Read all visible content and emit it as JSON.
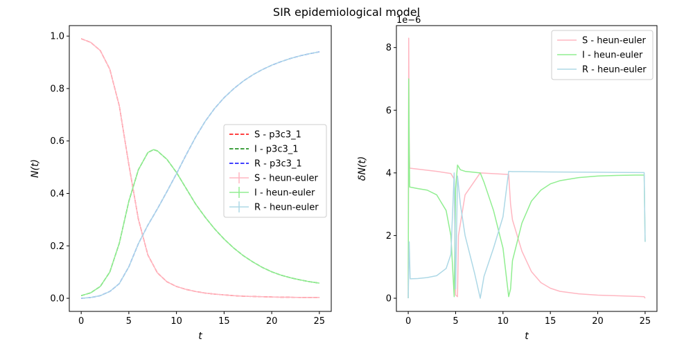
{
  "figure_title": "SIR epidemiological model",
  "chart_data": [
    {
      "type": "line",
      "xlabel": "t",
      "ylabel": "N(t)",
      "xlim": [
        -1.25,
        26.25
      ],
      "ylim": [
        -0.05,
        1.04
      ],
      "xticks": [
        0,
        5,
        10,
        15,
        20,
        25
      ],
      "xtick_labels": [
        "0",
        "5",
        "10",
        "15",
        "20",
        "25"
      ],
      "yticks": [
        0.0,
        0.2,
        0.4,
        0.6,
        0.8,
        1.0
      ],
      "ytick_labels": [
        "0.0",
        "0.2",
        "0.4",
        "0.6",
        "0.8",
        "1.0"
      ],
      "legend_position": "center-right",
      "series": [
        {
          "name": "S - p3c3_1",
          "color": "#ff0000",
          "style": "dashed",
          "x": [
            0,
            1,
            2,
            3,
            4,
            5,
            6,
            7,
            8,
            9,
            10,
            11,
            12,
            13,
            14,
            15,
            16,
            17,
            18,
            19,
            20,
            21,
            22,
            23,
            24,
            25
          ],
          "y": [
            0.99,
            0.976,
            0.945,
            0.874,
            0.734,
            0.51,
            0.302,
            0.165,
            0.097,
            0.063,
            0.045,
            0.034,
            0.026,
            0.02,
            0.016,
            0.013,
            0.01,
            0.008,
            0.007,
            0.006,
            0.005,
            0.004,
            0.004,
            0.003,
            0.003,
            0.003
          ]
        },
        {
          "name": "I - p3c3_1",
          "color": "#008000",
          "style": "dashed",
          "x": [
            0,
            1,
            2,
            3,
            4,
            5,
            6,
            7,
            7.6,
            8,
            9,
            10,
            11,
            12,
            13,
            14,
            15,
            16,
            17,
            18,
            19,
            20,
            21,
            22,
            23,
            24,
            25
          ],
          "y": [
            0.01,
            0.021,
            0.045,
            0.1,
            0.21,
            0.37,
            0.49,
            0.556,
            0.567,
            0.562,
            0.53,
            0.48,
            0.42,
            0.36,
            0.31,
            0.265,
            0.226,
            0.192,
            0.163,
            0.139,
            0.118,
            0.101,
            0.088,
            0.078,
            0.07,
            0.063,
            0.058
          ]
        },
        {
          "name": "R - p3c3_1",
          "color": "#0000ff",
          "style": "dashed",
          "x": [
            0,
            1,
            2,
            3,
            4,
            5,
            6,
            7,
            8,
            9,
            10,
            11,
            12,
            13,
            14,
            15,
            16,
            17,
            18,
            19,
            20,
            21,
            22,
            23,
            24,
            25
          ],
          "y": [
            0.0,
            0.003,
            0.01,
            0.026,
            0.056,
            0.12,
            0.208,
            0.279,
            0.341,
            0.407,
            0.475,
            0.546,
            0.614,
            0.674,
            0.724,
            0.765,
            0.799,
            0.828,
            0.852,
            0.872,
            0.889,
            0.903,
            0.915,
            0.925,
            0.933,
            0.94
          ]
        },
        {
          "name": "S - heun-euler",
          "color": "#ffb6c1",
          "style": "solid-errorbar",
          "x": [
            0,
            1,
            2,
            3,
            4,
            5,
            6,
            7,
            8,
            9,
            10,
            11,
            12,
            13,
            14,
            15,
            16,
            17,
            18,
            19,
            20,
            21,
            22,
            23,
            24,
            25
          ],
          "y": [
            0.99,
            0.976,
            0.945,
            0.874,
            0.734,
            0.51,
            0.302,
            0.165,
            0.097,
            0.063,
            0.045,
            0.034,
            0.026,
            0.02,
            0.016,
            0.013,
            0.01,
            0.008,
            0.007,
            0.006,
            0.005,
            0.004,
            0.004,
            0.003,
            0.003,
            0.003
          ]
        },
        {
          "name": "I - heun-euler",
          "color": "#90ee90",
          "style": "solid-errorbar",
          "x": [
            0,
            1,
            2,
            3,
            4,
            5,
            6,
            7,
            7.6,
            8,
            9,
            10,
            11,
            12,
            13,
            14,
            15,
            16,
            17,
            18,
            19,
            20,
            21,
            22,
            23,
            24,
            25
          ],
          "y": [
            0.01,
            0.021,
            0.045,
            0.1,
            0.21,
            0.37,
            0.49,
            0.556,
            0.567,
            0.562,
            0.53,
            0.48,
            0.42,
            0.36,
            0.31,
            0.265,
            0.226,
            0.192,
            0.163,
            0.139,
            0.118,
            0.101,
            0.088,
            0.078,
            0.07,
            0.063,
            0.058
          ]
        },
        {
          "name": "R - heun-euler",
          "color": "#add8e6",
          "style": "solid-errorbar",
          "x": [
            0,
            1,
            2,
            3,
            4,
            5,
            6,
            7,
            8,
            9,
            10,
            11,
            12,
            13,
            14,
            15,
            16,
            17,
            18,
            19,
            20,
            21,
            22,
            23,
            24,
            25
          ],
          "y": [
            0.0,
            0.003,
            0.01,
            0.026,
            0.056,
            0.12,
            0.208,
            0.279,
            0.341,
            0.407,
            0.475,
            0.546,
            0.614,
            0.674,
            0.724,
            0.765,
            0.799,
            0.828,
            0.852,
            0.872,
            0.889,
            0.903,
            0.915,
            0.925,
            0.933,
            0.94
          ]
        }
      ]
    },
    {
      "type": "line",
      "xlabel": "t",
      "ylabel": "δN(t)",
      "offset_text": "1e−6",
      "xlim": [
        -1.25,
        26.25
      ],
      "ylim": [
        -0.42,
        8.7
      ],
      "xticks": [
        0,
        5,
        10,
        15,
        20,
        25
      ],
      "xtick_labels": [
        "0",
        "5",
        "10",
        "15",
        "20",
        "25"
      ],
      "yticks": [
        0,
        2,
        4,
        6,
        8
      ],
      "ytick_labels": [
        "0",
        "2",
        "4",
        "6",
        "8"
      ],
      "legend_position": "top-right",
      "series": [
        {
          "name": "S - heun-euler",
          "color": "#ffb6c1",
          "x": [
            0,
            0.05,
            0.1,
            0.15,
            1,
            3,
            4.5,
            4.85,
            5.0,
            5.2,
            5.3,
            6,
            7.6,
            10.6,
            10.8,
            11,
            12,
            13,
            14,
            15,
            16,
            18,
            20,
            22,
            24,
            24.9,
            25
          ],
          "y": [
            0,
            8.3,
            5.0,
            4.15,
            4.12,
            4.05,
            3.98,
            3.8,
            0.1,
            0.05,
            2.0,
            3.3,
            4.0,
            3.95,
            3.0,
            2.5,
            1.5,
            0.85,
            0.5,
            0.32,
            0.22,
            0.14,
            0.1,
            0.08,
            0.06,
            0.05,
            0.0
          ]
        },
        {
          "name": "I - heun-euler",
          "color": "#90ee90",
          "x": [
            0,
            0.05,
            0.1,
            0.15,
            1,
            2,
            3,
            4,
            4.5,
            4.85,
            5.0,
            5.2,
            5.5,
            6,
            7.6,
            8,
            9,
            10,
            10.6,
            10.8,
            11,
            12,
            13,
            14,
            15,
            16,
            18,
            20,
            22,
            24,
            24.9,
            25
          ],
          "y": [
            0,
            7.0,
            5.0,
            3.55,
            3.5,
            3.45,
            3.3,
            2.8,
            2.0,
            0.05,
            3.5,
            4.25,
            4.1,
            4.05,
            4.0,
            3.7,
            2.8,
            1.6,
            0.05,
            0.3,
            1.2,
            2.4,
            3.1,
            3.45,
            3.65,
            3.75,
            3.85,
            3.9,
            3.92,
            3.93,
            3.93,
            1.8
          ]
        },
        {
          "name": "R - heun-euler",
          "color": "#add8e6",
          "x": [
            0,
            0.1,
            0.2,
            0.25,
            1,
            2,
            3,
            4,
            4.5,
            4.85,
            5.0,
            5.2,
            5.5,
            6,
            7,
            7.6,
            8,
            9,
            10,
            10.6,
            11,
            12,
            15,
            20,
            24.9,
            25
          ],
          "y": [
            0,
            1.8,
            0.62,
            0.62,
            0.63,
            0.66,
            0.72,
            0.95,
            1.4,
            4.0,
            0.3,
            3.9,
            3.0,
            2.0,
            0.8,
            0.0,
            0.7,
            1.6,
            2.6,
            4.05,
            4.04,
            4.04,
            4.03,
            4.02,
            4.01,
            1.8
          ]
        }
      ]
    }
  ]
}
